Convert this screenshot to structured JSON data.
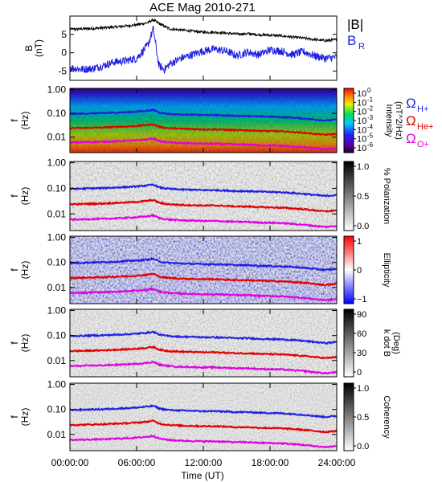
{
  "title": "ACE Mag 2010-271",
  "chart_data": [
    {
      "type": "line",
      "ylabel_main": "B",
      "ylabel_unit": "(nT)",
      "ylim": [
        -7.5,
        10
      ],
      "yticks": [
        "5",
        "0",
        "-5"
      ],
      "ytick_values": [
        5,
        0,
        -5
      ],
      "legend": [
        {
          "label": "|B|",
          "color": "#000000"
        },
        {
          "label_main": "B",
          "label_sub": "R",
          "color": "#1f1fe0"
        }
      ],
      "series": [
        {
          "name": "|B|",
          "color": "#000000",
          "x_hours": [
            0,
            1,
            2,
            3,
            4,
            5,
            6,
            7,
            7.5,
            8,
            8.5,
            9,
            10,
            11,
            12,
            13,
            14,
            15,
            16,
            17,
            18,
            19,
            20,
            21,
            22,
            23,
            24
          ],
          "values": [
            6.4,
            6.5,
            6.6,
            6.8,
            7.0,
            7.3,
            7.6,
            8.2,
            9.0,
            8.0,
            7.2,
            6.5,
            6.2,
            5.9,
            5.6,
            5.6,
            5.4,
            5.1,
            5.2,
            4.9,
            4.8,
            4.6,
            4.3,
            4.0,
            3.6,
            3.3,
            3.6
          ]
        },
        {
          "name": "B_R",
          "color": "#1f1fe0",
          "x_hours": [
            0,
            1,
            2,
            3,
            4,
            5,
            6,
            7,
            7.5,
            8,
            8.5,
            9,
            10,
            11,
            12,
            13,
            14,
            15,
            16,
            17,
            18,
            19,
            20,
            21,
            22,
            23,
            24
          ],
          "values": [
            -4.0,
            -4.5,
            -4.3,
            -3.5,
            -2.5,
            -2.2,
            -1.5,
            2.0,
            6.5,
            -3.5,
            -4.5,
            -3.0,
            -1.5,
            -0.5,
            0.5,
            1.0,
            0.5,
            -0.8,
            0.2,
            -0.5,
            0.8,
            0.5,
            -0.5,
            0.3,
            -0.8,
            -1.5,
            -1.2
          ]
        }
      ]
    },
    {
      "type": "heatmap",
      "ylabel_main": "f",
      "ylabel_unit": "(Hz)",
      "yticks": [
        "1.00",
        "0.10",
        "0.01"
      ],
      "colorbar": {
        "colormap": "rainbow",
        "ticks": [
          "10^0",
          "10^-1",
          "10^-2",
          "10^-3",
          "10^-4",
          "10^-5",
          "10^-6"
        ],
        "label": "Intensity",
        "unit": "(nT^2/Hz)"
      },
      "legend": [
        {
          "symbol": "Ω",
          "sub": "H+",
          "color": "#1f1fe0"
        },
        {
          "symbol": "Ω",
          "sub": "He+",
          "color": "#e00000"
        },
        {
          "symbol": "Ω",
          "sub": "O+",
          "color": "#e000e0"
        }
      ]
    },
    {
      "type": "heatmap",
      "ylabel_main": "f",
      "ylabel_unit": "(Hz)",
      "yticks": [
        "1.00",
        "0.10",
        "0.01"
      ],
      "colorbar": {
        "colormap": "gray",
        "ticks": [
          "1.0",
          "0.5",
          "0.0"
        ],
        "label": "% Polarization"
      }
    },
    {
      "type": "heatmap",
      "ylabel_main": "f",
      "ylabel_unit": "(Hz)",
      "yticks": [
        "1.00",
        "0.10",
        "0.01"
      ],
      "colorbar": {
        "colormap": "bwr",
        "ticks": [
          "1",
          "0",
          "−1"
        ],
        "label": "Ellipticity"
      }
    },
    {
      "type": "heatmap",
      "ylabel_main": "f",
      "ylabel_unit": "(Hz)",
      "yticks": [
        "1.00",
        "0.10",
        "0.01"
      ],
      "colorbar": {
        "colormap": "gray",
        "ticks": [
          "90",
          "60",
          "30",
          "0"
        ],
        "label": "k dot B",
        "unit": "(Deg)"
      }
    },
    {
      "type": "heatmap",
      "ylabel_main": "f",
      "ylabel_unit": "(Hz)",
      "yticks": [
        "1.00",
        "0.10",
        "0.01"
      ],
      "colorbar": {
        "colormap": "gray",
        "ticks": [
          "1.0",
          "0.5",
          "0.0"
        ],
        "label": "Coherency"
      }
    }
  ],
  "gyrofrequency_traces": {
    "x_hours": [
      0,
      1,
      2,
      3,
      4,
      5,
      6,
      7,
      7.5,
      8,
      8.5,
      9,
      10,
      11,
      12,
      13,
      14,
      15,
      16,
      17,
      18,
      19,
      20,
      21,
      22,
      23,
      24
    ],
    "H_plus_hz": [
      0.095,
      0.097,
      0.1,
      0.102,
      0.107,
      0.112,
      0.118,
      0.13,
      0.14,
      0.11,
      0.1,
      0.095,
      0.09,
      0.088,
      0.085,
      0.085,
      0.082,
      0.078,
      0.078,
      0.074,
      0.072,
      0.07,
      0.066,
      0.061,
      0.055,
      0.05,
      0.055
    ],
    "He_plus_hz": [
      0.024,
      0.0243,
      0.025,
      0.0255,
      0.0268,
      0.028,
      0.0295,
      0.0325,
      0.035,
      0.0275,
      0.025,
      0.0238,
      0.0225,
      0.022,
      0.0213,
      0.0213,
      0.0205,
      0.0195,
      0.0195,
      0.0185,
      0.018,
      0.0175,
      0.0165,
      0.0153,
      0.0138,
      0.0125,
      0.0138
    ],
    "O_plus_hz": [
      0.006,
      0.0061,
      0.0063,
      0.0064,
      0.0067,
      0.007,
      0.0074,
      0.0081,
      0.0088,
      0.0069,
      0.0063,
      0.006,
      0.0056,
      0.0055,
      0.0053,
      0.0053,
      0.0051,
      0.0049,
      0.0049,
      0.0046,
      0.0045,
      0.0044,
      0.0041,
      0.0038,
      0.0034,
      0.0031,
      0.0034
    ]
  },
  "x_axis": {
    "label": "Time (UT)",
    "ticks": [
      "00:00:00",
      "06:00:00",
      "12:00:00",
      "18:00:00",
      "24:00:00"
    ],
    "tick_hours": [
      0,
      6,
      12,
      18,
      24
    ],
    "xlim_hours": [
      0,
      24
    ]
  }
}
